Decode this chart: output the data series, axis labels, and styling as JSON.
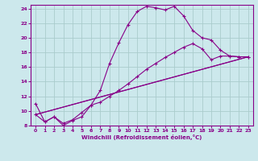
{
  "xlabel": "Windchill (Refroidissement éolien,°C)",
  "bg_color": "#cce8ec",
  "grid_color": "#aacccc",
  "line_color": "#880088",
  "xlim": [
    -0.5,
    23.5
  ],
  "ylim": [
    8,
    24.5
  ],
  "xticks": [
    0,
    1,
    2,
    3,
    4,
    5,
    6,
    7,
    8,
    9,
    10,
    11,
    12,
    13,
    14,
    15,
    16,
    17,
    18,
    19,
    20,
    21,
    22,
    23
  ],
  "yticks": [
    8,
    10,
    12,
    14,
    16,
    18,
    20,
    22,
    24
  ],
  "curve1_x": [
    0,
    1,
    2,
    3,
    4,
    5,
    6,
    7,
    8,
    9,
    10,
    11,
    12,
    13,
    14,
    15,
    16,
    17,
    18,
    19,
    20,
    21,
    22,
    23
  ],
  "curve1_y": [
    11.0,
    8.5,
    9.2,
    8.0,
    8.7,
    9.2,
    10.8,
    12.8,
    16.5,
    19.3,
    21.8,
    23.6,
    24.3,
    24.1,
    23.8,
    24.3,
    23.0,
    21.0,
    20.0,
    19.7,
    18.3,
    17.5,
    17.4,
    17.4
  ],
  "curve2_x": [
    0,
    1,
    2,
    3,
    4,
    5,
    6,
    7,
    8,
    9,
    10,
    11,
    12,
    13,
    14,
    15,
    16,
    17,
    18,
    19,
    20,
    21,
    22,
    23
  ],
  "curve2_y": [
    9.5,
    8.5,
    9.2,
    8.3,
    8.8,
    9.8,
    10.8,
    11.2,
    12.0,
    12.8,
    13.7,
    14.7,
    15.7,
    16.5,
    17.3,
    18.0,
    18.7,
    19.2,
    18.5,
    17.0,
    17.5,
    17.5,
    17.4,
    17.4
  ],
  "curve3_x": [
    0,
    2,
    3,
    23
  ],
  "curve3_y": [
    9.5,
    9.2,
    8.3,
    17.4
  ],
  "curve4_x": [
    0,
    3,
    23
  ],
  "curve4_y": [
    9.5,
    8.3,
    17.4
  ]
}
